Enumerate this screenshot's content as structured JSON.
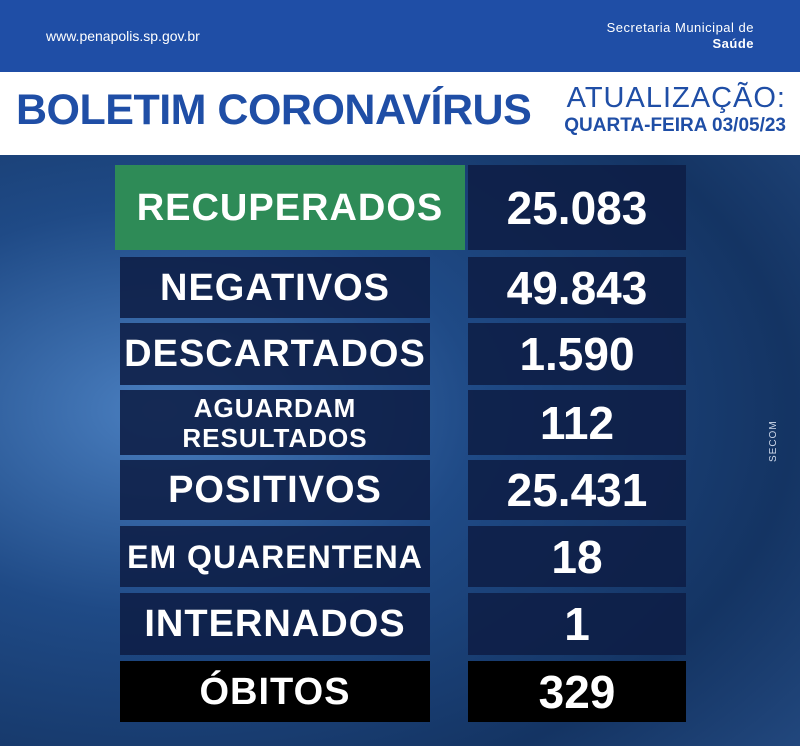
{
  "header": {
    "url": "www.penapolis.sp.gov.br",
    "secretaria": "Secretaria Municipal de",
    "department": "Saúde",
    "title": "BOLETIM CORONAVÍRUS",
    "update_label": "ATUALIZAÇÃO:",
    "update_date": "QUARTA-FEIRA 03/05/23"
  },
  "side_text": "SECOM",
  "table": {
    "rows": [
      {
        "label": [
          "RECUPERADOS"
        ],
        "value": "25.083"
      },
      {
        "label": [
          "NEGATIVOS"
        ],
        "value": "49.843"
      },
      {
        "label": [
          "DESCARTADOS"
        ],
        "value": "1.590"
      },
      {
        "label": [
          "AGUARDAM",
          "RESULTADOS"
        ],
        "value": "112"
      },
      {
        "label": [
          "POSITIVOS"
        ],
        "value": "25.431"
      },
      {
        "label": [
          "EM QUARENTENA"
        ],
        "value": "18"
      },
      {
        "label": [
          "INTERNADOS"
        ],
        "value": "1"
      },
      {
        "label": [
          "ÓBITOS"
        ],
        "value": "329"
      }
    ]
  }
}
